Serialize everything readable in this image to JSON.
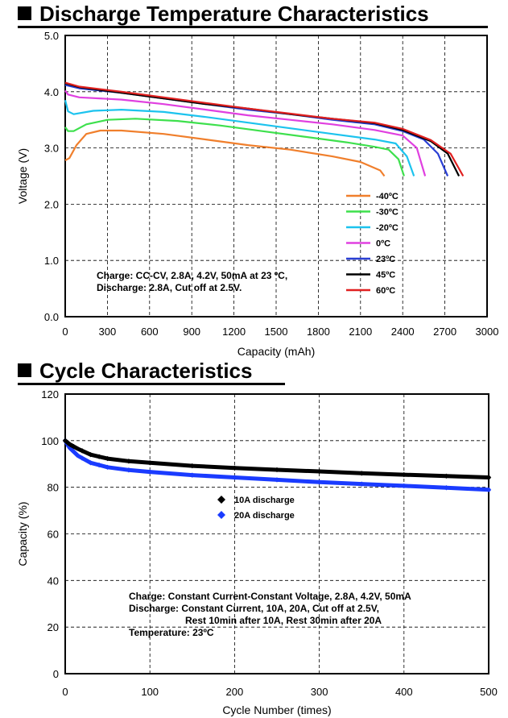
{
  "chart_data": [
    {
      "type": "line",
      "title": "Discharge Temperature Characteristics",
      "xlabel": "Capacity (mAh)",
      "ylabel": "Voltage (V)",
      "xlim": [
        0,
        3000
      ],
      "ylim": [
        0,
        5
      ],
      "xticks": [
        "0",
        "300",
        "600",
        "900",
        "1200",
        "1500",
        "1800",
        "2100",
        "2400",
        "2700",
        "3000"
      ],
      "yticks": [
        "0.0",
        "1.0",
        "2.0",
        "3.0",
        "4.0",
        "5.0"
      ],
      "grid": true,
      "legend_position": "bottom-right",
      "annotation": [
        "Charge: CC-CV, 2.8A, 4.2V, 50mA at 23 ºC,",
        "Discharge: 2.8A, Cut off at 2.5V."
      ],
      "series": [
        {
          "name": "-40ºC",
          "color": "#f07f2c",
          "points": [
            [
              0,
              2.78
            ],
            [
              30,
              2.82
            ],
            [
              80,
              3.05
            ],
            [
              150,
              3.25
            ],
            [
              250,
              3.31
            ],
            [
              400,
              3.31
            ],
            [
              700,
              3.25
            ],
            [
              1000,
              3.15
            ],
            [
              1300,
              3.05
            ],
            [
              1600,
              2.97
            ],
            [
              1900,
              2.85
            ],
            [
              2100,
              2.75
            ],
            [
              2240,
              2.6
            ],
            [
              2270,
              2.5
            ]
          ]
        },
        {
          "name": "-30ºC",
          "color": "#3ee04d",
          "points": [
            [
              0,
              3.37
            ],
            [
              20,
              3.3
            ],
            [
              60,
              3.3
            ],
            [
              150,
              3.42
            ],
            [
              300,
              3.5
            ],
            [
              500,
              3.52
            ],
            [
              800,
              3.48
            ],
            [
              1100,
              3.4
            ],
            [
              1400,
              3.3
            ],
            [
              1700,
              3.2
            ],
            [
              2000,
              3.1
            ],
            [
              2200,
              3.02
            ],
            [
              2300,
              2.97
            ],
            [
              2370,
              2.8
            ],
            [
              2410,
              2.5
            ]
          ]
        },
        {
          "name": "-20ºC",
          "color": "#1cc3ee",
          "points": [
            [
              0,
              3.85
            ],
            [
              20,
              3.65
            ],
            [
              60,
              3.6
            ],
            [
              200,
              3.66
            ],
            [
              400,
              3.68
            ],
            [
              700,
              3.64
            ],
            [
              1000,
              3.55
            ],
            [
              1300,
              3.45
            ],
            [
              1600,
              3.35
            ],
            [
              1900,
              3.25
            ],
            [
              2200,
              3.15
            ],
            [
              2350,
              3.08
            ],
            [
              2430,
              2.85
            ],
            [
              2480,
              2.5
            ]
          ]
        },
        {
          "name": "0ºC",
          "color": "#e040e0",
          "points": [
            [
              0,
              4.02
            ],
            [
              20,
              3.95
            ],
            [
              100,
              3.9
            ],
            [
              400,
              3.86
            ],
            [
              700,
              3.78
            ],
            [
              1000,
              3.68
            ],
            [
              1300,
              3.58
            ],
            [
              1600,
              3.5
            ],
            [
              1900,
              3.42
            ],
            [
              2200,
              3.32
            ],
            [
              2400,
              3.22
            ],
            [
              2500,
              3.0
            ],
            [
              2560,
              2.5
            ]
          ]
        },
        {
          "name": "23ºC",
          "color": "#2a3fd4",
          "points": [
            [
              0,
              4.12
            ],
            [
              100,
              4.06
            ],
            [
              400,
              3.98
            ],
            [
              700,
              3.88
            ],
            [
              1000,
              3.78
            ],
            [
              1300,
              3.68
            ],
            [
              1600,
              3.6
            ],
            [
              1900,
              3.5
            ],
            [
              2200,
              3.42
            ],
            [
              2400,
              3.3
            ],
            [
              2550,
              3.15
            ],
            [
              2650,
              2.9
            ],
            [
              2720,
              2.5
            ]
          ]
        },
        {
          "name": "45ºC",
          "color": "#000000",
          "points": [
            [
              0,
              4.15
            ],
            [
              100,
              4.08
            ],
            [
              400,
              3.98
            ],
            [
              700,
              3.88
            ],
            [
              1000,
              3.78
            ],
            [
              1300,
              3.7
            ],
            [
              1600,
              3.6
            ],
            [
              1900,
              3.52
            ],
            [
              2200,
              3.44
            ],
            [
              2400,
              3.32
            ],
            [
              2600,
              3.12
            ],
            [
              2720,
              2.9
            ],
            [
              2800,
              2.5
            ]
          ]
        },
        {
          "name": "60ºC",
          "color": "#e02020",
          "points": [
            [
              0,
              4.16
            ],
            [
              100,
              4.09
            ],
            [
              400,
              4.0
            ],
            [
              700,
              3.9
            ],
            [
              1000,
              3.8
            ],
            [
              1300,
              3.7
            ],
            [
              1600,
              3.61
            ],
            [
              1900,
              3.52
            ],
            [
              2200,
              3.45
            ],
            [
              2400,
              3.34
            ],
            [
              2600,
              3.14
            ],
            [
              2740,
              2.9
            ],
            [
              2830,
              2.5
            ]
          ]
        }
      ]
    },
    {
      "type": "scatter",
      "title": "Cycle Characteristics",
      "xlabel": "Cycle Number (times)",
      "ylabel": "Capacity (%)",
      "xlim": [
        0,
        500
      ],
      "ylim": [
        0,
        120
      ],
      "xticks": [
        "0",
        "100",
        "200",
        "300",
        "400",
        "500"
      ],
      "yticks": [
        "0",
        "20",
        "40",
        "60",
        "80",
        "100",
        "120"
      ],
      "grid": true,
      "legend_position": "center-left",
      "annotation": [
        "Charge: Constant Current-Constant Voltage, 2.8A, 4.2V, 50mA",
        "Discharge: Constant Current, 10A, 20A, Cut off at 2.5V,",
        "Rest 10min after 10A, Rest 30min after 20A",
        "Temperature: 23ºC"
      ],
      "series": [
        {
          "name": "10A discharge",
          "color": "#000000",
          "curve": [
            [
              0,
              100
            ],
            [
              5,
              98.5
            ],
            [
              15,
              96.5
            ],
            [
              30,
              94
            ],
            [
              50,
              92.3
            ],
            [
              75,
              91.2
            ],
            [
              100,
              90.5
            ],
            [
              150,
              89.2
            ],
            [
              200,
              88.3
            ],
            [
              250,
              87.5
            ],
            [
              300,
              86.8
            ],
            [
              350,
              86
            ],
            [
              400,
              85.4
            ],
            [
              450,
              84.8
            ],
            [
              500,
              84.2
            ]
          ],
          "markers": [
            0,
            2,
            4,
            6,
            8,
            10,
            20,
            30,
            40,
            50,
            75,
            100,
            150,
            200,
            250,
            300,
            350,
            400,
            450,
            500
          ]
        },
        {
          "name": "20A discharge",
          "color": "#1a3bff",
          "curve": [
            [
              0,
              100
            ],
            [
              5,
              97
            ],
            [
              15,
              93.5
            ],
            [
              30,
              90.5
            ],
            [
              50,
              88.6
            ],
            [
              75,
              87.4
            ],
            [
              100,
              86.6
            ],
            [
              150,
              85.2
            ],
            [
              200,
              84.2
            ],
            [
              250,
              83.2
            ],
            [
              300,
              82.2
            ],
            [
              350,
              81.4
            ],
            [
              400,
              80.6
            ],
            [
              450,
              79.8
            ],
            [
              500,
              78.9
            ]
          ],
          "markers": [
            0,
            2,
            4,
            6,
            8,
            10,
            20,
            30,
            40,
            50,
            75,
            100,
            150,
            200,
            250,
            300,
            350,
            400,
            450,
            500
          ]
        }
      ]
    }
  ]
}
